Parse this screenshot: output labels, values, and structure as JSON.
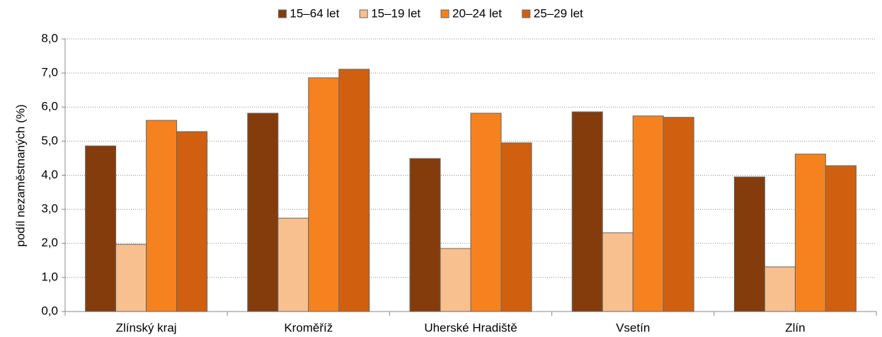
{
  "chart_data": {
    "type": "bar",
    "y_label": "podíl nezaměstnaných (%)",
    "categories": [
      "Zlínský kraj",
      "Kroměříž",
      "Uherské Hradiště",
      "Vsetín",
      "Zlín"
    ],
    "series": [
      {
        "name": "15–64 let",
        "color": "#843c0c",
        "values": [
          4.86,
          5.82,
          4.49,
          5.86,
          3.95
        ]
      },
      {
        "name": "15–19 let",
        "color": "#f9c08f",
        "values": [
          1.97,
          2.74,
          1.85,
          2.31,
          1.31
        ]
      },
      {
        "name": "20–24 let",
        "color": "#f5821f",
        "values": [
          5.61,
          6.86,
          5.82,
          5.74,
          4.62
        ]
      },
      {
        "name": "25–29 let",
        "color": "#d0600f",
        "values": [
          5.28,
          7.11,
          4.95,
          5.7,
          4.28
        ]
      }
    ],
    "ylim": [
      0,
      8
    ],
    "yticks": [
      {
        "value": 0,
        "label": "0,0"
      },
      {
        "value": 1,
        "label": "1,0"
      },
      {
        "value": 2,
        "label": "2,0"
      },
      {
        "value": 3,
        "label": "3,0"
      },
      {
        "value": 4,
        "label": "4,0"
      },
      {
        "value": 5,
        "label": "5,0"
      },
      {
        "value": 6,
        "label": "6,0"
      },
      {
        "value": 7,
        "label": "7,0"
      },
      {
        "value": 8,
        "label": "8,0"
      }
    ],
    "grid": true,
    "legend": "top"
  }
}
